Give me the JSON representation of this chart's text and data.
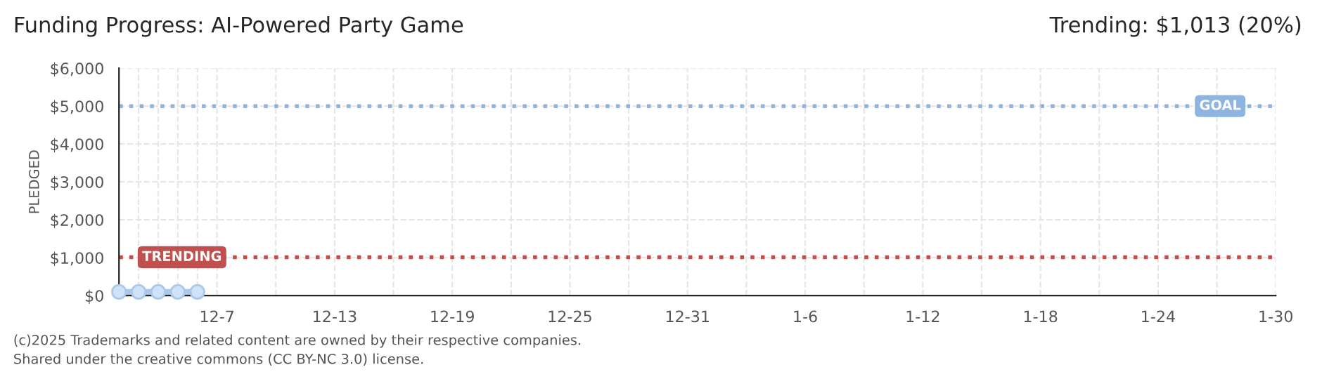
{
  "chart_data": {
    "type": "line",
    "title": "Funding Progress: AI-Powered Party Game",
    "ylabel": "PLEDGED",
    "x": [
      "2024-12-02",
      "2024-12-03",
      "2024-12-04",
      "2024-12-05",
      "2024-12-06"
    ],
    "series": [
      {
        "color": "#a9c8ea",
        "values": [
          100,
          100,
          100,
          100,
          100
        ]
      }
    ],
    "marker": "circle",
    "line_style": "solid",
    "grid": true,
    "xlim": [
      "2024-12-02",
      "2025-01-30"
    ],
    "xticks": [
      {
        "value": "2024-12-02",
        "label": null
      },
      {
        "value": "2024-12-03",
        "label": null
      },
      {
        "value": "2024-12-04",
        "label": null
      },
      {
        "value": "2024-12-05",
        "label": null
      },
      {
        "value": "2024-12-06",
        "label": null
      },
      {
        "value": "2024-12-07",
        "label": "12-7"
      },
      {
        "value": "2024-12-10",
        "label": null
      },
      {
        "value": "2024-12-13",
        "label": "12-13"
      },
      {
        "value": "2024-12-16",
        "label": null
      },
      {
        "value": "2024-12-19",
        "label": "12-19"
      },
      {
        "value": "2024-12-22",
        "label": null
      },
      {
        "value": "2024-12-25",
        "label": "12-25"
      },
      {
        "value": "2024-12-28",
        "label": null
      },
      {
        "value": "2024-12-31",
        "label": "12-31"
      },
      {
        "value": "2025-01-03",
        "label": null
      },
      {
        "value": "2025-01-06",
        "label": "1-6"
      },
      {
        "value": "2025-01-09",
        "label": null
      },
      {
        "value": "2025-01-12",
        "label": "1-12"
      },
      {
        "value": "2025-01-15",
        "label": null
      },
      {
        "value": "2025-01-18",
        "label": "1-18"
      },
      {
        "value": "2025-01-21",
        "label": null
      },
      {
        "value": "2025-01-24",
        "label": "1-24"
      },
      {
        "value": "2025-01-27",
        "label": null
      },
      {
        "value": "2025-01-30",
        "label": "1-30"
      }
    ],
    "ylim": [
      0,
      6000
    ],
    "yticks": [
      {
        "value": 0,
        "label": "$0"
      },
      {
        "value": 1000,
        "label": "$1,000"
      },
      {
        "value": 2000,
        "label": "$2,000"
      },
      {
        "value": 3000,
        "label": "$3,000"
      },
      {
        "value": 4000,
        "label": "$4,000"
      },
      {
        "value": 5000,
        "label": "$5,000"
      },
      {
        "value": 6000,
        "label": "$6,000"
      }
    ],
    "ref_lines": [
      {
        "axis": "y",
        "value": 5000,
        "label": "GOAL",
        "color": "#8fb4e0",
        "line_style": "dotted"
      },
      {
        "axis": "y",
        "value": 1013,
        "label": "TRENDING",
        "color": "#c0504d",
        "line_style": "dotted"
      }
    ],
    "annotations": [
      "Trending: $1,013 (20%)",
      "(c)2025 Trademarks and related content are owned by their respective companies.",
      "Shared under the creative commons (CC BY-NC 3.0) license."
    ]
  }
}
